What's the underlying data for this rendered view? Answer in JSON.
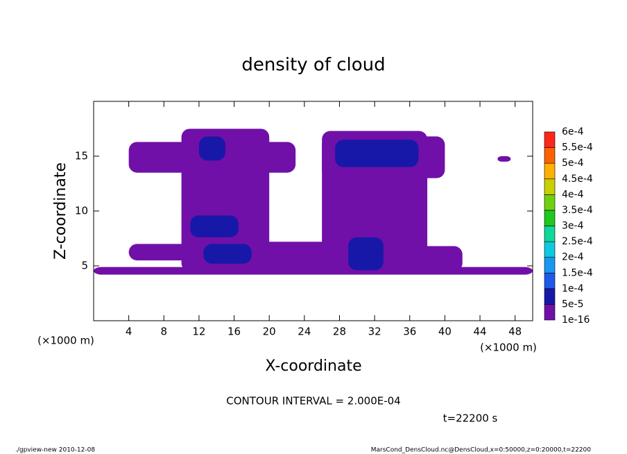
{
  "chart_data": {
    "type": "contour",
    "title": "density of cloud",
    "x_label": "X-coordinate",
    "y_label": "Z-coordinate",
    "x_unit": "(×1000 m)",
    "xlim": [
      0,
      50
    ],
    "xticks": [
      4,
      8,
      12,
      16,
      20,
      24,
      28,
      32,
      36,
      40,
      44,
      48
    ],
    "ylim": [
      0,
      20
    ],
    "yticks": [
      5,
      10,
      15
    ],
    "levels": [
      {
        "value": 1e-16,
        "label": "1e-16"
      },
      {
        "value": 5e-05,
        "label": "5e-5"
      },
      {
        "value": 0.0001,
        "label": "1e-4"
      },
      {
        "value": 0.00015,
        "label": "1.5e-4"
      },
      {
        "value": 0.0002,
        "label": "2e-4"
      },
      {
        "value": 0.00025,
        "label": "2.5e-4"
      },
      {
        "value": 0.0003,
        "label": "3e-4"
      },
      {
        "value": 0.00035,
        "label": "3.5e-4"
      },
      {
        "value": 0.0004,
        "label": "4e-4"
      },
      {
        "value": 0.00045,
        "label": "4.5e-4"
      },
      {
        "value": 0.0005,
        "label": "5e-4"
      },
      {
        "value": 0.00055,
        "label": "5.5e-4"
      },
      {
        "value": 0.0006,
        "label": "6e-4"
      }
    ],
    "colors": [
      "#7010a8",
      "#1818a8",
      "#2058e8",
      "#1898f0",
      "#10c8e0",
      "#10d898",
      "#20c820",
      "#70d010",
      "#c8d000",
      "#ffb000",
      "#ff6000",
      "#ff2818"
    ],
    "regions": [
      {
        "x": [
          0,
          50
        ],
        "z": [
          4.2,
          4.9
        ],
        "value": 1e-16
      },
      {
        "x": [
          4,
          23
        ],
        "z": [
          13.5,
          16.3
        ],
        "value": 1e-16
      },
      {
        "x": [
          10,
          20
        ],
        "z": [
          4.5,
          17.5
        ],
        "value": 1e-16
      },
      {
        "x": [
          4,
          18
        ],
        "z": [
          5.5,
          7
        ],
        "value": 1e-16
      },
      {
        "x": [
          18,
          28
        ],
        "z": [
          4.5,
          7.2
        ],
        "value": 1e-16
      },
      {
        "x": [
          26,
          38
        ],
        "z": [
          4.5,
          17.3
        ],
        "value": 1e-16
      },
      {
        "x": [
          26,
          40
        ],
        "z": [
          13,
          16.8
        ],
        "value": 1e-16
      },
      {
        "x": [
          36,
          42
        ],
        "z": [
          4.5,
          6.8
        ],
        "value": 1e-16
      },
      {
        "x": [
          46,
          47.5
        ],
        "z": [
          14.5,
          15
        ],
        "value": 1e-16
      },
      {
        "x": [
          12,
          15
        ],
        "z": [
          14.6,
          16.8
        ],
        "value": 5e-05
      },
      {
        "x": [
          11,
          16.5
        ],
        "z": [
          7.6,
          9.6
        ],
        "value": 5e-05
      },
      {
        "x": [
          12.5,
          18
        ],
        "z": [
          5.2,
          7
        ],
        "value": 5e-05
      },
      {
        "x": [
          27.5,
          37
        ],
        "z": [
          14,
          16.5
        ],
        "value": 5e-05
      },
      {
        "x": [
          29,
          33
        ],
        "z": [
          4.6,
          7.6
        ],
        "value": 5e-05
      }
    ],
    "contour_interval": "CONTOUR INTERVAL = 2.000E-04",
    "time": "t=22200 s",
    "footer_left": "./gpview-new   2010-12-08",
    "footer_right": "MarsCond_DensCloud.nc@DensCloud,x=0:50000,z=0:20000,t=22200"
  }
}
